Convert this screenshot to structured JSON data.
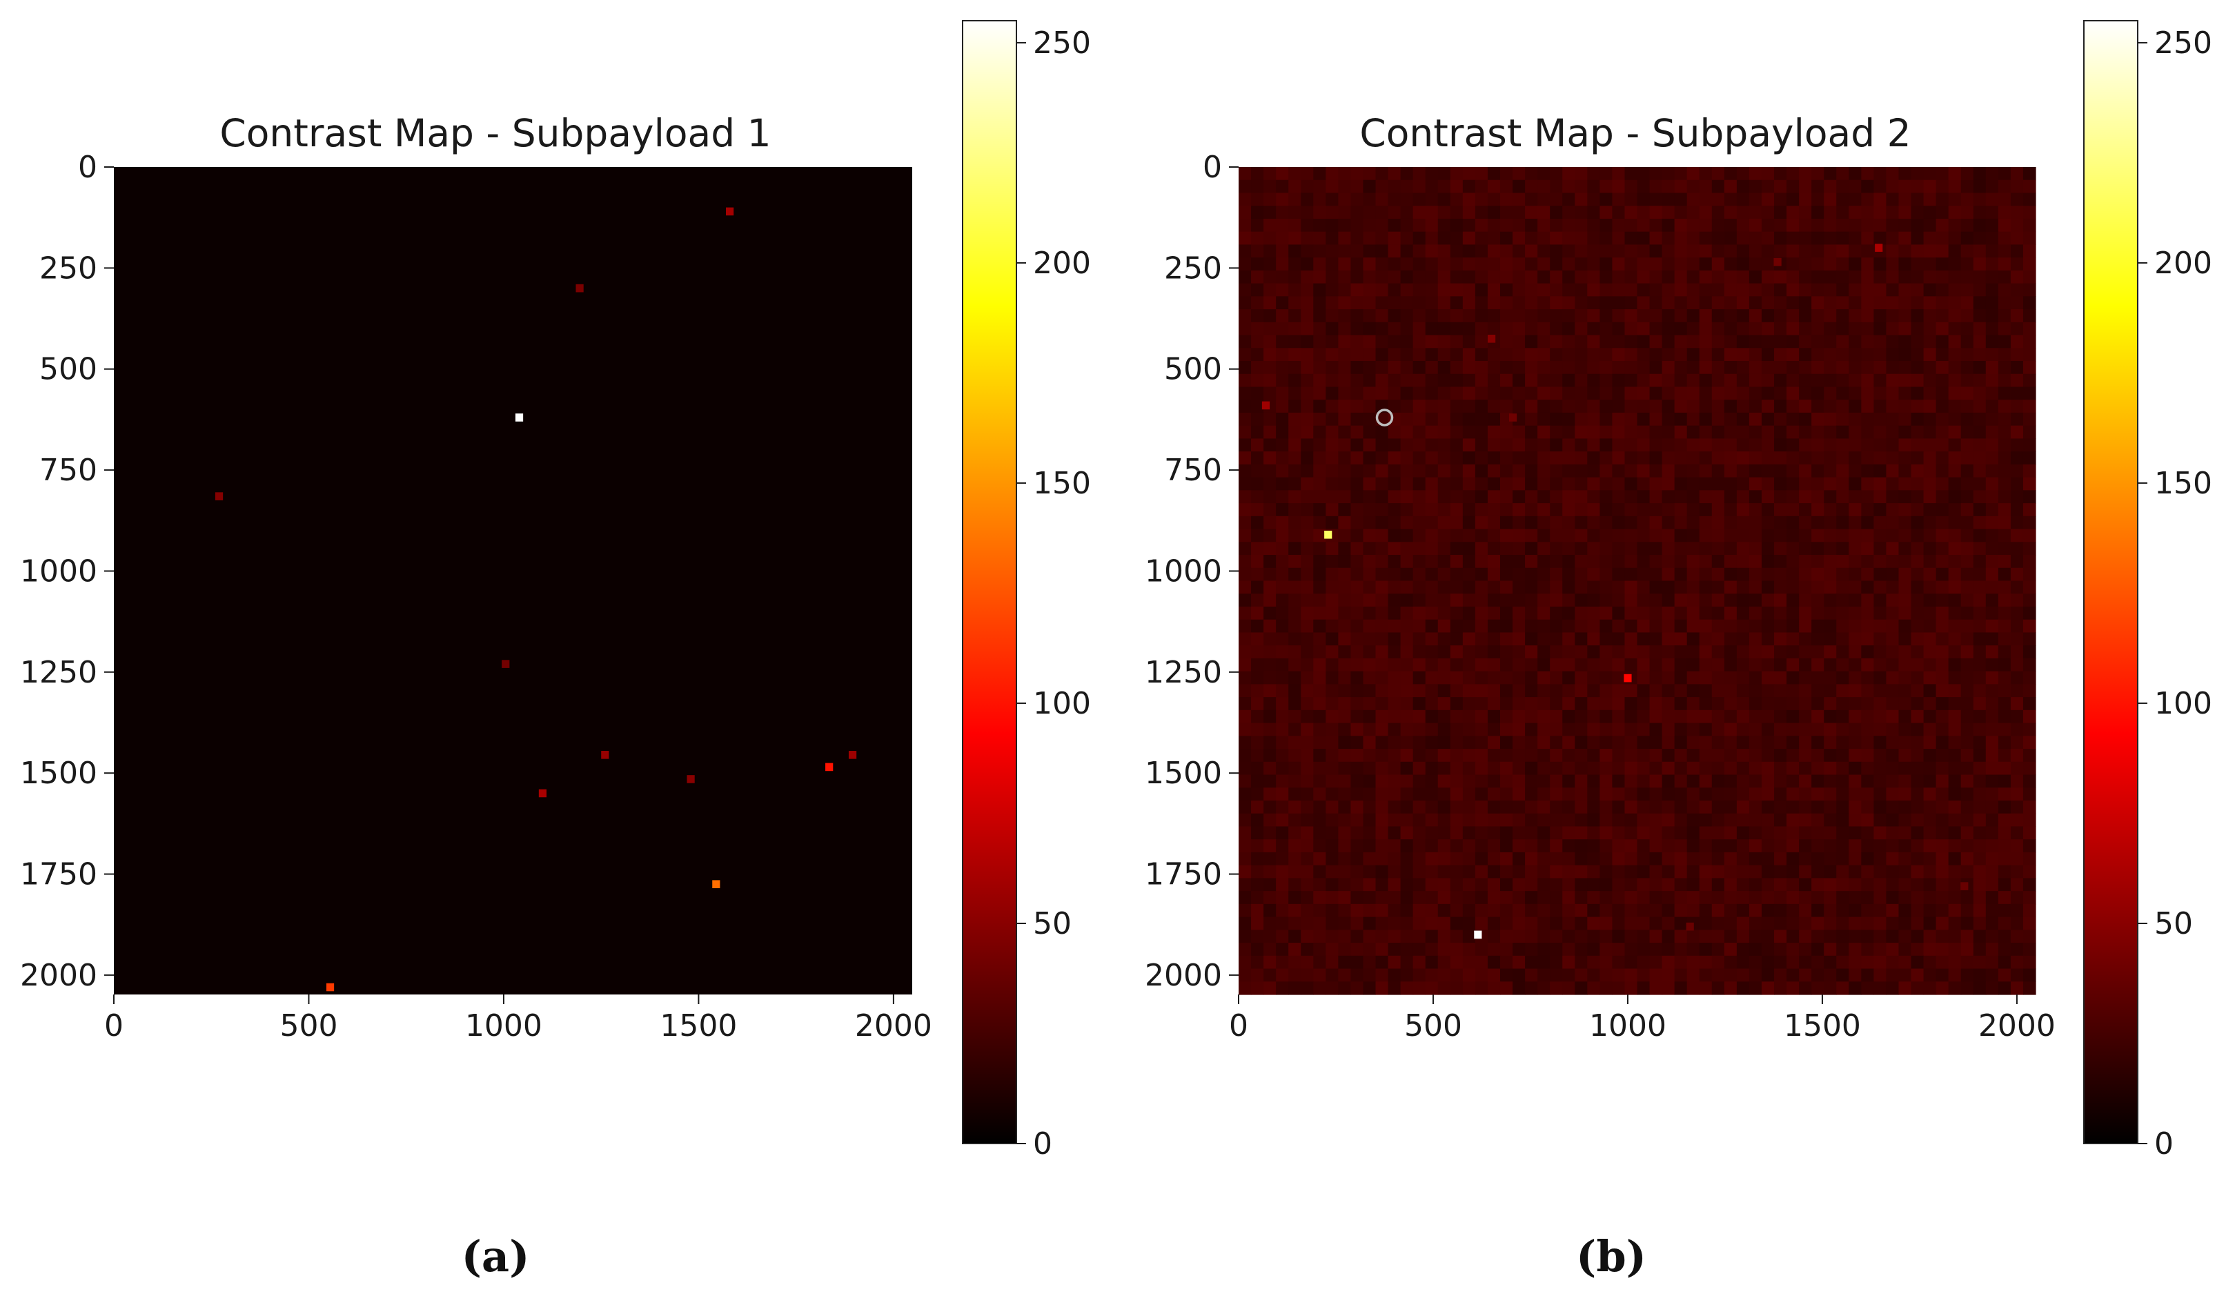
{
  "chart_data": [
    {
      "type": "heatmap",
      "title": "Contrast Map - Subpayload 1",
      "caption": "(a)",
      "colormap": "hot",
      "background_value": 4,
      "background_noise": 0,
      "xlim": [
        0,
        2048
      ],
      "ylim": [
        2048,
        0
      ],
      "xticks": [
        0,
        500,
        1000,
        1500,
        2000
      ],
      "yticks": [
        0,
        250,
        500,
        750,
        1000,
        1250,
        1500,
        1750,
        2000
      ],
      "colorbar": {
        "min": 0,
        "max": 255,
        "ticks": [
          0,
          50,
          100,
          150,
          200,
          250
        ]
      },
      "points": [
        {
          "x": 1580,
          "y": 110,
          "value": 60
        },
        {
          "x": 1195,
          "y": 300,
          "value": 45
        },
        {
          "x": 1040,
          "y": 620,
          "value": 255
        },
        {
          "x": 270,
          "y": 815,
          "value": 48
        },
        {
          "x": 1005,
          "y": 1230,
          "value": 42
        },
        {
          "x": 1260,
          "y": 1455,
          "value": 55
        },
        {
          "x": 1100,
          "y": 1550,
          "value": 62
        },
        {
          "x": 1480,
          "y": 1515,
          "value": 50
        },
        {
          "x": 1835,
          "y": 1485,
          "value": 100
        },
        {
          "x": 1895,
          "y": 1455,
          "value": 58
        },
        {
          "x": 1545,
          "y": 1775,
          "value": 135
        },
        {
          "x": 555,
          "y": 2030,
          "value": 115
        }
      ]
    },
    {
      "type": "heatmap",
      "title": "Contrast Map - Subpayload 2",
      "caption": "(b)",
      "colormap": "hot",
      "background_value": 24,
      "background_noise": 7,
      "xlim": [
        0,
        2048
      ],
      "ylim": [
        2048,
        0
      ],
      "xticks": [
        0,
        500,
        1000,
        1500,
        2000
      ],
      "yticks": [
        0,
        250,
        500,
        750,
        1000,
        1250,
        1500,
        1750,
        2000
      ],
      "colorbar": {
        "min": 0,
        "max": 255,
        "ticks": [
          0,
          50,
          100,
          150,
          200,
          250
        ]
      },
      "points": [
        {
          "x": 1645,
          "y": 200,
          "value": 62
        },
        {
          "x": 1385,
          "y": 235,
          "value": 40
        },
        {
          "x": 650,
          "y": 425,
          "value": 48
        },
        {
          "x": 70,
          "y": 590,
          "value": 58
        },
        {
          "x": 375,
          "y": 620,
          "value": 40,
          "ring": true
        },
        {
          "x": 705,
          "y": 620,
          "value": 40
        },
        {
          "x": 230,
          "y": 910,
          "value": 215
        },
        {
          "x": 1000,
          "y": 1265,
          "value": 95
        },
        {
          "x": 1160,
          "y": 1880,
          "value": 38
        },
        {
          "x": 615,
          "y": 1900,
          "value": 255
        },
        {
          "x": 1865,
          "y": 1780,
          "value": 38
        }
      ]
    }
  ]
}
